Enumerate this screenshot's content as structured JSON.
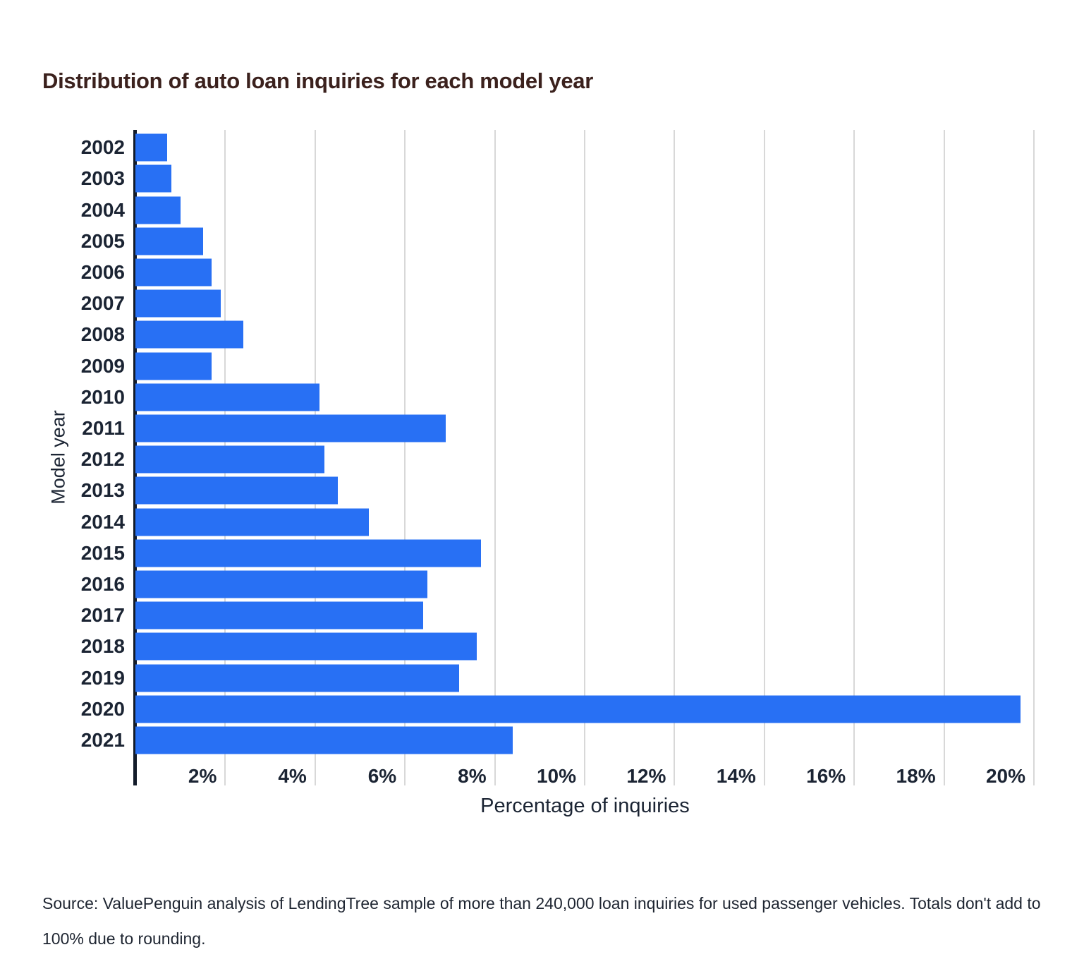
{
  "title": "Distribution of auto loan inquiries for each model year",
  "chart_data": {
    "type": "bar",
    "orientation": "horizontal",
    "title": "Distribution of auto loan inquiries for each model year",
    "categories": [
      "2002",
      "2003",
      "2004",
      "2005",
      "2006",
      "2007",
      "2008",
      "2009",
      "2010",
      "2011",
      "2012",
      "2013",
      "2014",
      "2015",
      "2016",
      "2017",
      "2018",
      "2019",
      "2020",
      "2021"
    ],
    "values": [
      0.7,
      0.8,
      1.0,
      1.5,
      1.7,
      1.9,
      2.4,
      1.7,
      4.1,
      6.9,
      4.2,
      4.5,
      5.2,
      7.7,
      6.5,
      6.4,
      7.6,
      7.2,
      19.7,
      8.4
    ],
    "xlabel": "Percentage of inquiries",
    "ylabel": "Model year",
    "x_ticks": [
      "2%",
      "4%",
      "6%",
      "8%",
      "10%",
      "12%",
      "14%",
      "16%",
      "18%",
      "20%"
    ],
    "x_tick_values": [
      2,
      4,
      6,
      8,
      10,
      12,
      14,
      16,
      18,
      20
    ],
    "xlim": [
      0,
      20
    ],
    "grid": "vertical",
    "legend": "none"
  },
  "colors": {
    "bar": "#2870f4",
    "axis_line": "#131c2a",
    "gridline": "#d8d8d8",
    "labels": "#1b2433",
    "title": "#3b211d",
    "source": "#1e2531",
    "background": "#ffffff"
  },
  "source_note": "Source: ValuePenguin analysis of LendingTree sample of more than 240,000 loan inquiries for used passenger vehicles. Totals don't add to 100% due to rounding."
}
